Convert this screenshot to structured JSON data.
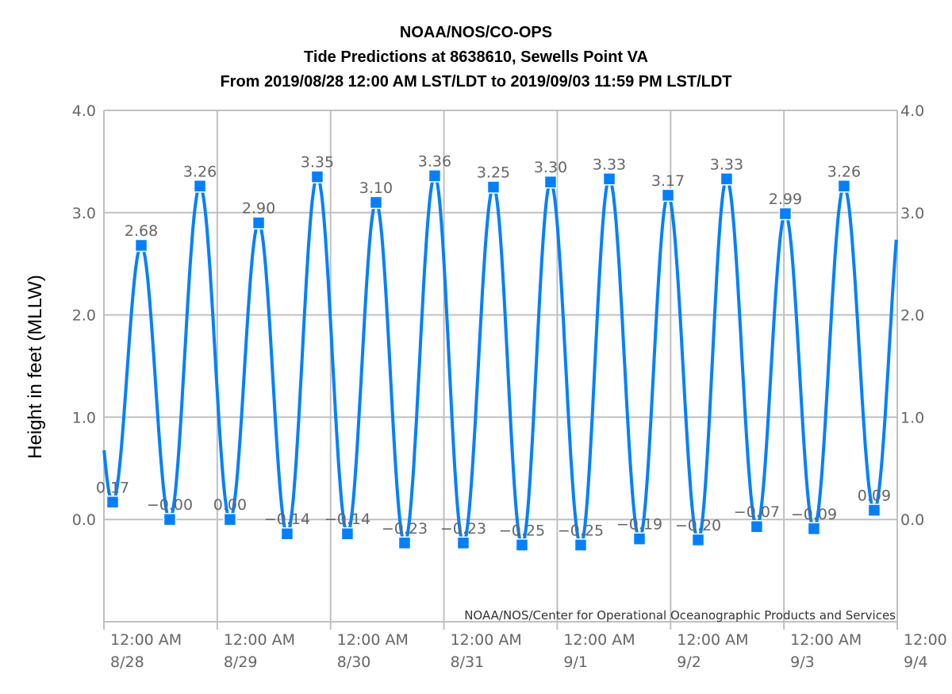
{
  "chart_data": {
    "type": "line",
    "title": [
      "NOAA/NOS/CO-OPS",
      "Tide Predictions at 8638610, Sewells Point VA",
      "From 2019/08/28 12:00 AM LST/LDT to 2019/09/03 11:59 PM LST/LDT"
    ],
    "ylabel": "Height in feet (MLLW)",
    "credit": "NOAA/NOS/Center for Operational Oceanographic Products and Services",
    "ylim": [
      -1.0,
      4.0
    ],
    "yticks": [
      "4.0",
      "3.0",
      "2.0",
      "1.0",
      "0.0"
    ],
    "ytick_values": [
      4,
      3,
      2,
      1,
      0
    ],
    "xlim": [
      "2019-08-28T00:00",
      "2019-09-04T00:00"
    ],
    "xticks": [
      {
        "time": "2019-08-28T00:00",
        "line1": "12:00 AM",
        "line2": "8/28"
      },
      {
        "time": "2019-08-29T00:00",
        "line1": "12:00 AM",
        "line2": "8/29"
      },
      {
        "time": "2019-08-30T00:00",
        "line1": "12:00 AM",
        "line2": "8/30"
      },
      {
        "time": "2019-08-31T00:00",
        "line1": "12:00 AM",
        "line2": "8/31"
      },
      {
        "time": "2019-09-01T00:00",
        "line1": "12:00 AM",
        "line2": "9/1"
      },
      {
        "time": "2019-09-02T00:00",
        "line1": "12:00 AM",
        "line2": "9/2"
      },
      {
        "time": "2019-09-03T00:00",
        "line1": "12:00 AM",
        "line2": "9/3"
      },
      {
        "time": "2019-09-04T00:00",
        "line1": "12:00",
        "line2": "9/4"
      }
    ],
    "grid": true,
    "line_color": "#0080ff",
    "points": [
      {
        "time": "2019-08-28T01:51",
        "value": 0.17,
        "label": "0.17"
      },
      {
        "time": "2019-08-28T07:54",
        "value": 2.68,
        "label": "2.68"
      },
      {
        "time": "2019-08-28T13:56",
        "value": 0.0,
        "label": "−0.00"
      },
      {
        "time": "2019-08-28T20:20",
        "value": 3.26,
        "label": "3.26"
      },
      {
        "time": "2019-08-29T02:42",
        "value": 0.0,
        "label": "0.00"
      },
      {
        "time": "2019-08-29T08:46",
        "value": 2.9,
        "label": "2.90"
      },
      {
        "time": "2019-08-29T14:48",
        "value": -0.14,
        "label": "−0.14"
      },
      {
        "time": "2019-08-29T21:11",
        "value": 3.35,
        "label": "3.35"
      },
      {
        "time": "2019-08-30T03:34",
        "value": -0.14,
        "label": "−0.14"
      },
      {
        "time": "2019-08-30T09:37",
        "value": 3.1,
        "label": "3.10"
      },
      {
        "time": "2019-08-30T15:40",
        "value": -0.23,
        "label": "−0.23"
      },
      {
        "time": "2019-08-30T22:03",
        "value": 3.36,
        "label": "3.36"
      },
      {
        "time": "2019-08-31T04:06",
        "value": -0.23,
        "label": "−0.23"
      },
      {
        "time": "2019-08-31T10:29",
        "value": 3.25,
        "label": "3.25"
      },
      {
        "time": "2019-08-31T16:32",
        "value": -0.25,
        "label": "−0.25"
      },
      {
        "time": "2019-08-31T22:35",
        "value": 3.3,
        "label": "3.30"
      },
      {
        "time": "2019-09-01T04:58",
        "value": -0.25,
        "label": "−0.25"
      },
      {
        "time": "2019-09-01T11:01",
        "value": 3.33,
        "label": "3.33"
      },
      {
        "time": "2019-09-01T17:24",
        "value": -0.19,
        "label": "−0.19"
      },
      {
        "time": "2019-09-01T23:27",
        "value": 3.17,
        "label": "3.17"
      },
      {
        "time": "2019-09-02T05:50",
        "value": -0.2,
        "label": "−0.20"
      },
      {
        "time": "2019-09-02T11:52",
        "value": 3.33,
        "label": "3.33"
      },
      {
        "time": "2019-09-02T18:15",
        "value": -0.07,
        "label": "−0.07"
      },
      {
        "time": "2019-09-03T00:18",
        "value": 2.99,
        "label": "2.99"
      },
      {
        "time": "2019-09-03T06:21",
        "value": -0.09,
        "label": "−0.09"
      },
      {
        "time": "2019-09-03T12:44",
        "value": 3.26,
        "label": "3.26"
      },
      {
        "time": "2019-09-03T19:07",
        "value": 0.09,
        "label": "0.09"
      }
    ]
  }
}
